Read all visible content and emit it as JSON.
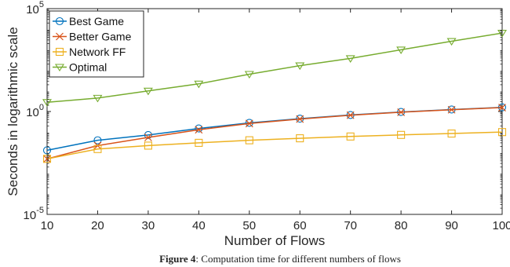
{
  "chart_data": {
    "type": "line",
    "xlabel": "Number of Flows",
    "ylabel": "Seconds in logarithmic scale",
    "x": [
      10,
      20,
      30,
      40,
      50,
      60,
      70,
      80,
      90,
      100
    ],
    "xlim": [
      10,
      100
    ],
    "x_ticks": [
      "10",
      "20",
      "30",
      "40",
      "50",
      "60",
      "70",
      "80",
      "90",
      "100"
    ],
    "yscale": "log",
    "ylim": [
      1e-05,
      100000
    ],
    "y_ticks": [
      {
        "value": 1e-05,
        "base": "10",
        "exp": "-5"
      },
      {
        "value": 1,
        "base": "10",
        "exp": "0"
      },
      {
        "value": 100000,
        "base": "10",
        "exp": "5"
      }
    ],
    "grid": false,
    "legend_position": "top-left",
    "series": [
      {
        "name": "Best Game",
        "color": "#0072BD",
        "marker": "circle",
        "values": [
          0.013,
          0.04,
          0.072,
          0.15,
          0.28,
          0.45,
          0.68,
          0.95,
          1.25,
          1.6
        ]
      },
      {
        "name": "Better Game",
        "color": "#D95319",
        "marker": "x",
        "values": [
          0.005,
          0.022,
          0.055,
          0.13,
          0.26,
          0.43,
          0.66,
          0.92,
          1.22,
          1.55
        ]
      },
      {
        "name": "Network FF",
        "color": "#EDB120",
        "marker": "square",
        "values": [
          0.005,
          0.015,
          0.022,
          0.03,
          0.04,
          0.05,
          0.061,
          0.073,
          0.085,
          0.1
        ]
      },
      {
        "name": "Optimal",
        "color": "#77AC30",
        "marker": "triangle-down",
        "values": [
          2.8,
          4.5,
          10,
          22,
          65,
          170,
          380,
          1000,
          2600,
          6500
        ]
      }
    ]
  },
  "caption": {
    "label": "Figure 4",
    "text": ": Computation time for different numbers of flows"
  }
}
